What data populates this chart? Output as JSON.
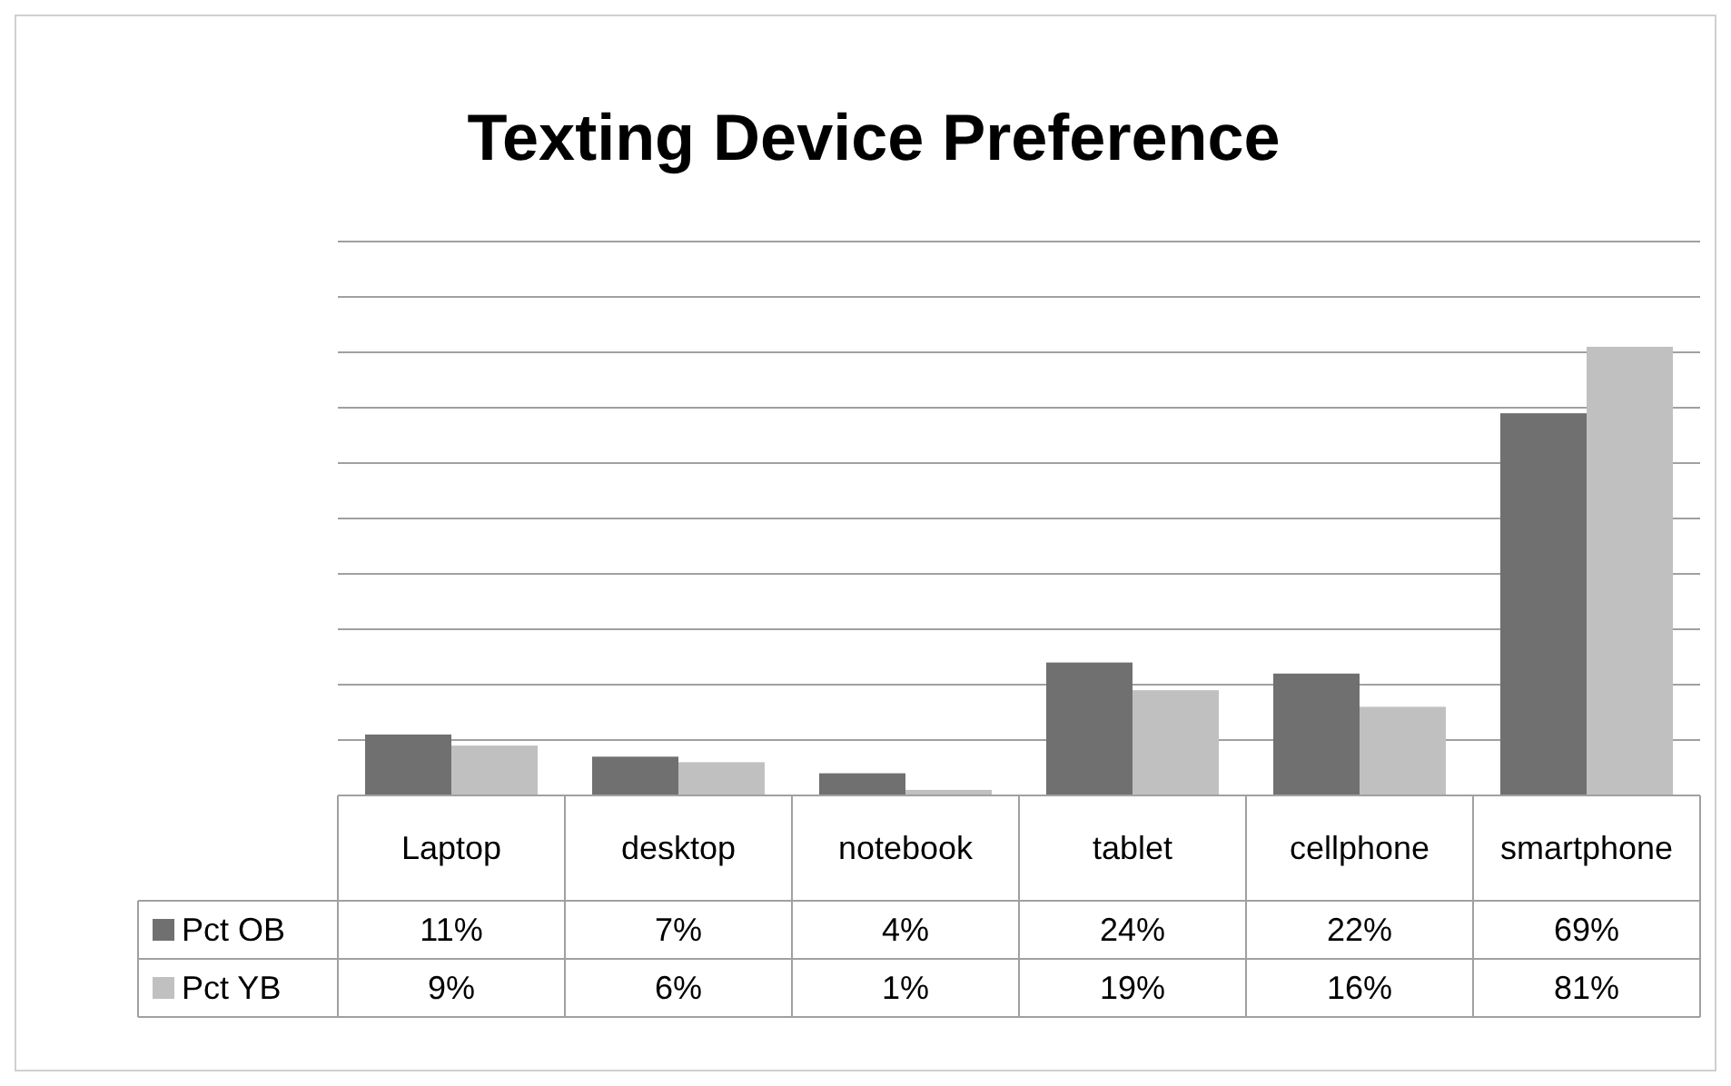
{
  "chart_data": {
    "type": "bar",
    "title": "Texting Device Preference",
    "categories": [
      "Laptop",
      "desktop",
      "notebook",
      "tablet",
      "cellphone",
      "smartphone"
    ],
    "series": [
      {
        "name": "Pct OB",
        "color": "#707070",
        "values": [
          11,
          7,
          4,
          24,
          22,
          69
        ],
        "value_labels": [
          "11%",
          "7%",
          "4%",
          "24%",
          "22%",
          "69%"
        ]
      },
      {
        "name": "Pct YB",
        "color": "#c0c0c0",
        "values": [
          9,
          6,
          1,
          19,
          16,
          81
        ],
        "value_labels": [
          "9%",
          "6%",
          "1%",
          "19%",
          "16%",
          "81%"
        ]
      }
    ],
    "ylim": [
      0,
      100
    ],
    "yticks": [
      {
        "value": 0,
        "label": null
      },
      {
        "value": 10,
        "label": null
      },
      {
        "value": 20,
        "label": null
      },
      {
        "value": 30,
        "label": null
      },
      {
        "value": 40,
        "label": null
      },
      {
        "value": 50,
        "label": null
      },
      {
        "value": 60,
        "label": null
      },
      {
        "value": 70,
        "label": null
      },
      {
        "value": 80,
        "label": null
      },
      {
        "value": 90,
        "label": null
      },
      {
        "value": 100,
        "label": null
      }
    ],
    "tick_labels": "x",
    "grid": "y",
    "legend": "bottom"
  }
}
